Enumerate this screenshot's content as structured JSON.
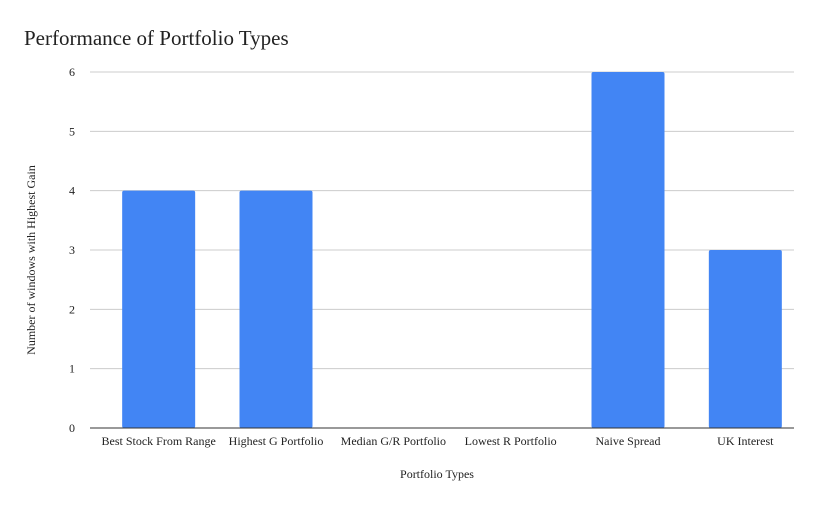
{
  "chart_data": {
    "type": "bar",
    "title": "Performance of Portfolio Types",
    "xlabel": "Portfolio Types",
    "ylabel": "Number of  windows with Highest Gain",
    "categories": [
      "Best Stock From Range",
      "Highest G Portfolio",
      "Median G/R Portfolio",
      "Lowest R Portfolio",
      "Naive Spread",
      "UK Interest"
    ],
    "values": [
      4,
      4,
      0,
      0,
      6,
      3
    ],
    "ylim": [
      0,
      6
    ],
    "yticks": [
      "0",
      "1",
      "2",
      "3",
      "4",
      "5",
      "6"
    ],
    "grid": true,
    "legend": "none",
    "bar_color": "#4285f4"
  }
}
